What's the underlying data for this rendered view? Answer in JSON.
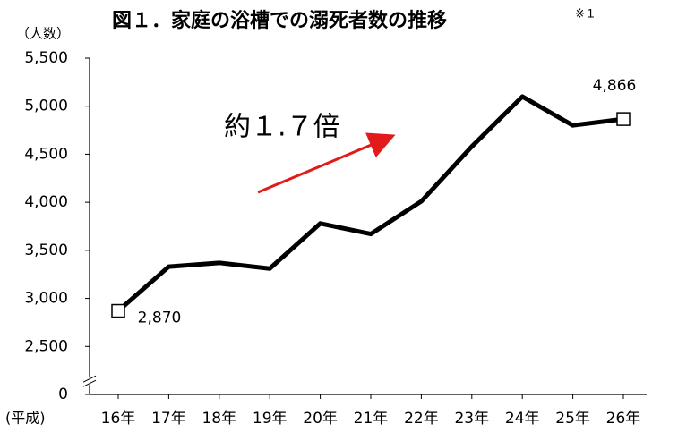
{
  "chart_data": {
    "type": "line",
    "title": "図１．家庭の浴槽での溺死者数の推移",
    "title_note": "※１",
    "y_label": "（人数）",
    "x_label": "(平成)",
    "annotation": "約１.７倍",
    "categories": [
      "16年",
      "17年",
      "18年",
      "19年",
      "20年",
      "21年",
      "22年",
      "23年",
      "24年",
      "25年",
      "26年"
    ],
    "values": [
      2870,
      3330,
      3370,
      3310,
      3780,
      3670,
      4010,
      4580,
      5100,
      4800,
      4866
    ],
    "value_labels": [
      "2,870",
      null,
      null,
      null,
      null,
      null,
      null,
      null,
      null,
      null,
      "4,866"
    ],
    "color": "#000000",
    "ylim": [
      2000,
      5500
    ],
    "axis_break": true,
    "yticks": [
      0,
      {
        "value": 2500,
        "label": "2,500"
      },
      {
        "value": 3000,
        "label": "3,000"
      },
      {
        "value": 3500,
        "label": "3,500"
      },
      {
        "value": 4000,
        "label": "4,000"
      },
      {
        "value": 4500,
        "label": "4,500"
      },
      {
        "value": 5000,
        "label": "5,000"
      },
      {
        "value": 5500,
        "label": "5,500"
      }
    ],
    "grid": false
  }
}
